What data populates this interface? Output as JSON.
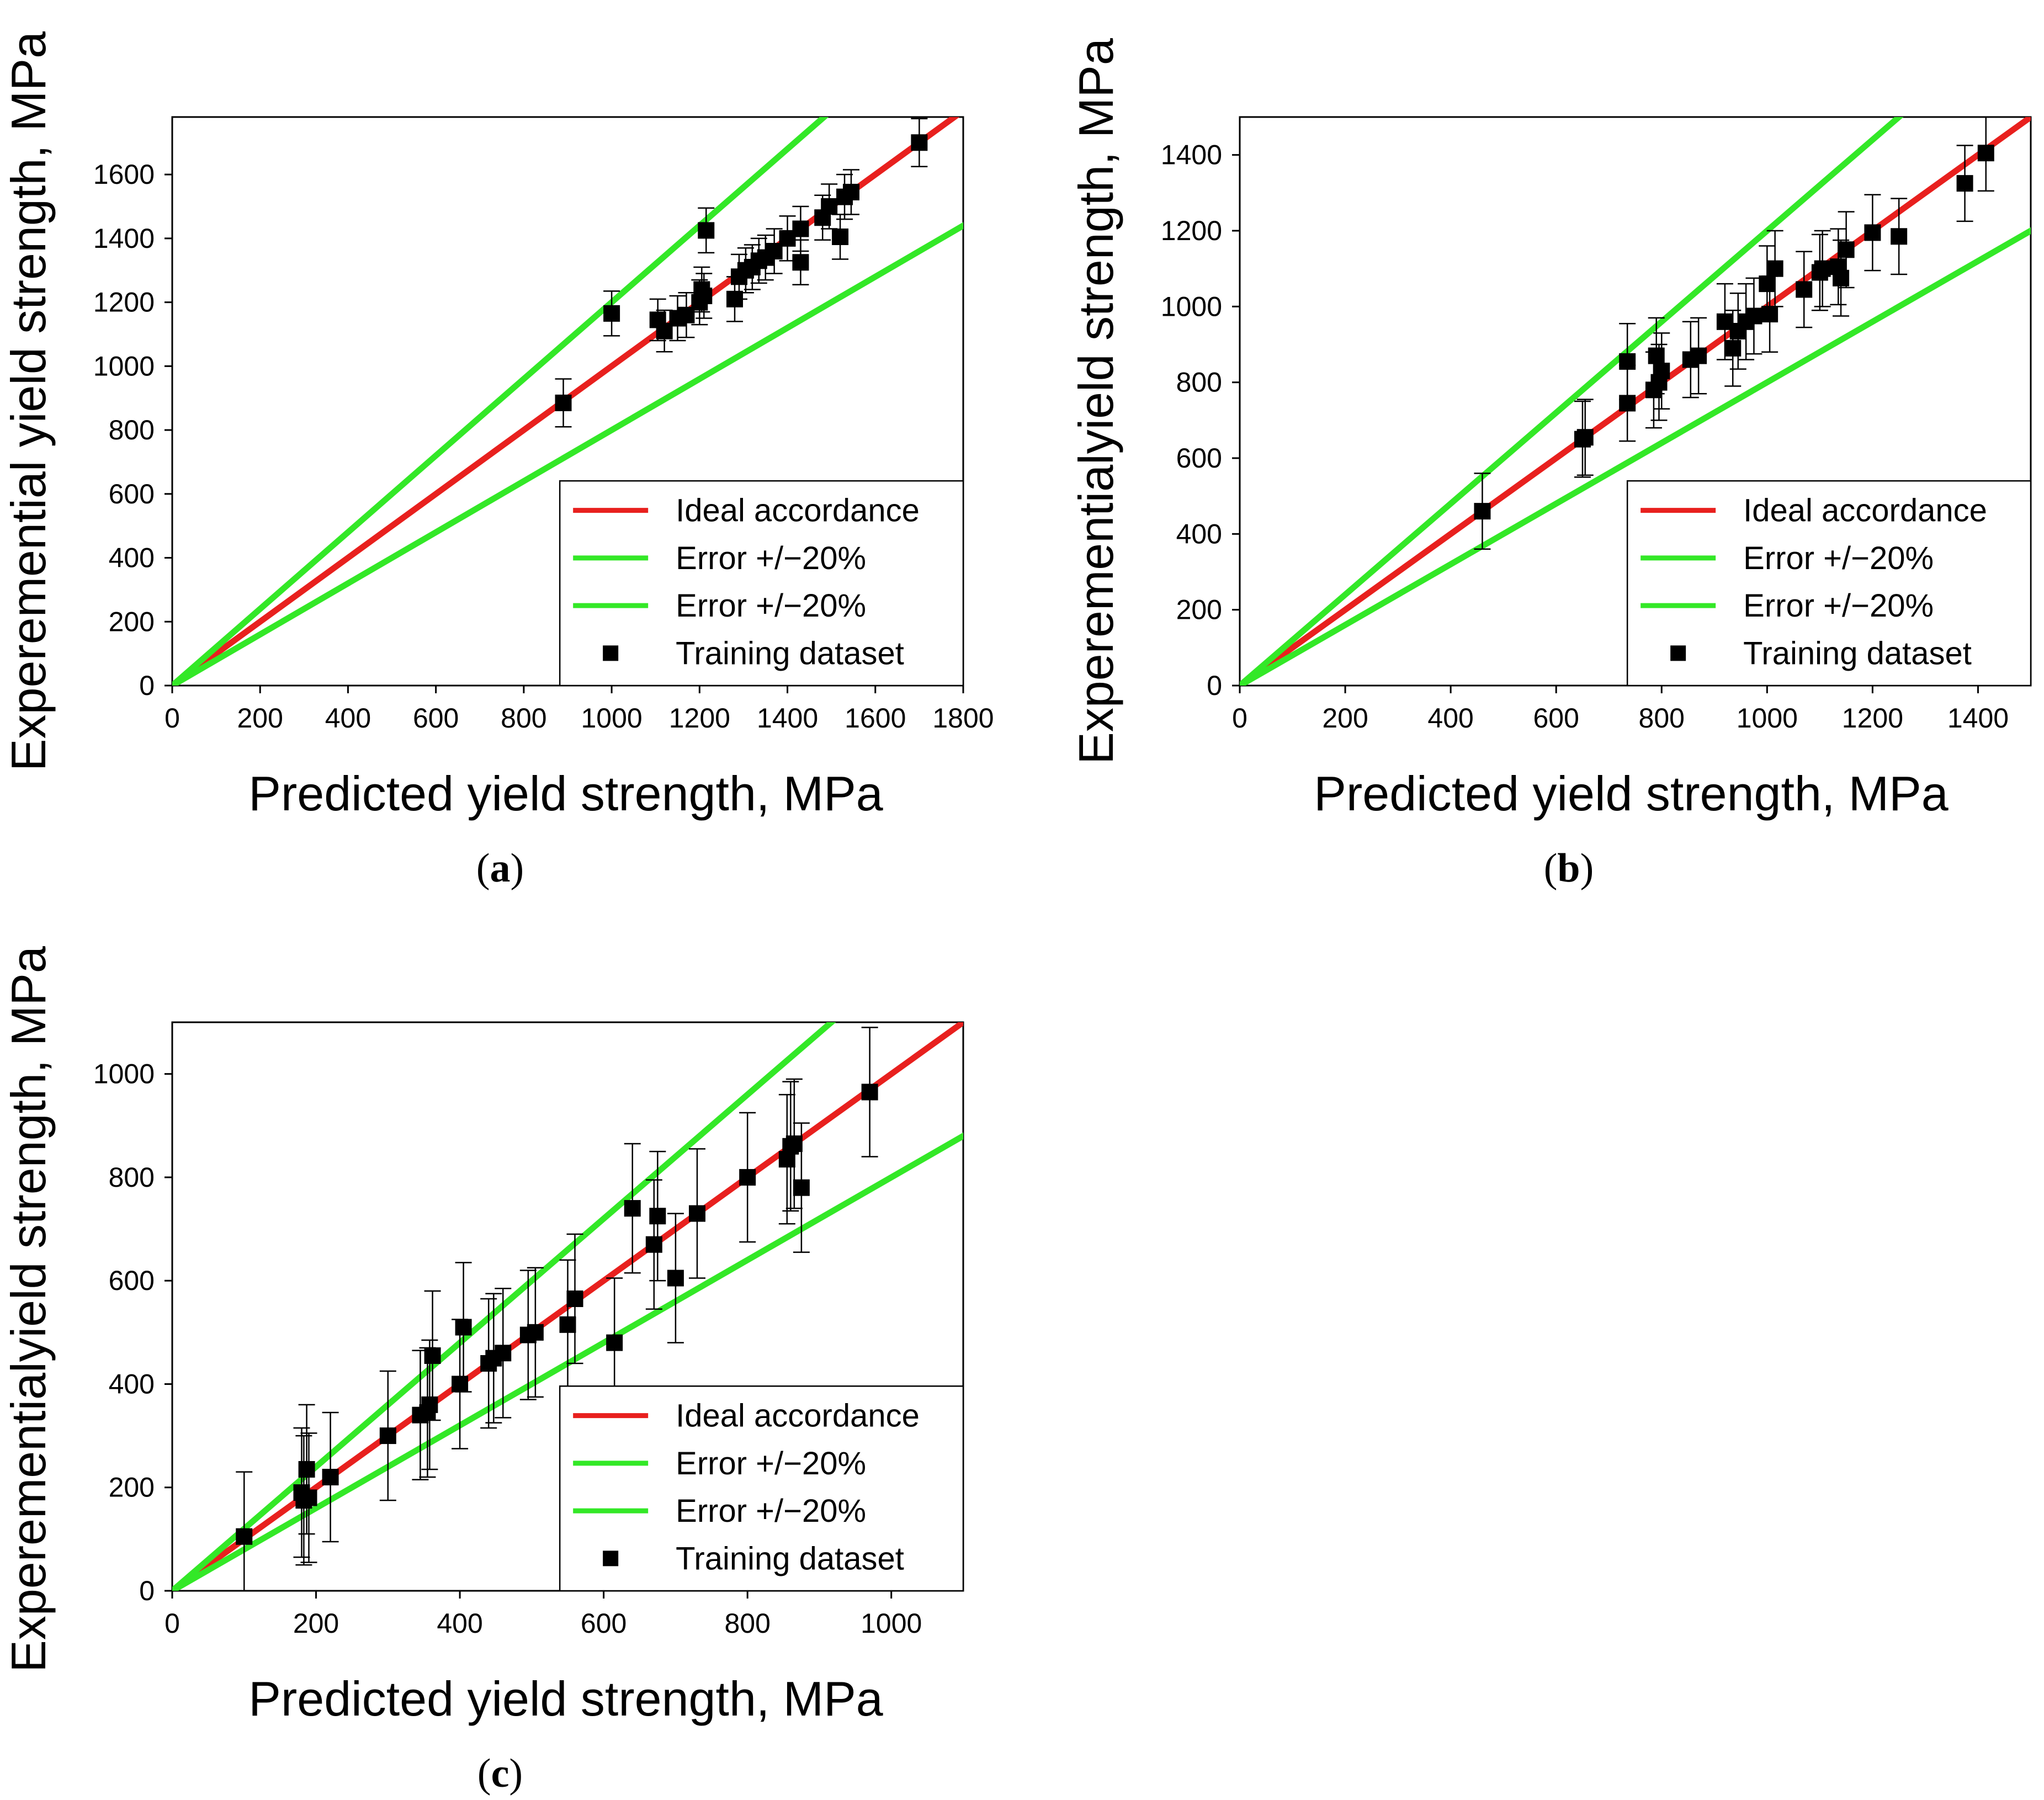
{
  "colors": {
    "ideal": "#e8201e",
    "error": "#33e827",
    "points": "#000000"
  },
  "charts": [
    {
      "caption": {
        "open": "(",
        "letter": "a",
        "close": ")"
      },
      "xlabel": "Predicted yield strength, MPa",
      "ylabel": "Exper​emential yield strength, MPa",
      "xlim": [
        0,
        1800
      ],
      "ylim": [
        0,
        1780
      ],
      "xticks": [
        0,
        200,
        400,
        600,
        800,
        1000,
        1200,
        1400,
        1600,
        1800
      ],
      "yticks": [
        0,
        200,
        400,
        600,
        800,
        1000,
        1200,
        1400,
        1600
      ],
      "legend": [
        "Ideal accordance",
        "Error +/−20%",
        "Error +/−20%",
        "Training dataset"
      ]
    },
    {
      "caption": {
        "open": "(",
        "letter": "b",
        "close": ")"
      },
      "xlabel": "Predicted yield strength, MPa",
      "ylabel": "Experementialyield strength, MPa",
      "xlim": [
        0,
        1500
      ],
      "ylim": [
        0,
        1500
      ],
      "xticks": [
        0,
        200,
        400,
        600,
        800,
        1000,
        1200,
        1400
      ],
      "yticks": [
        0,
        200,
        400,
        600,
        800,
        1000,
        1200,
        1400
      ],
      "legend": [
        "Ideal accordance",
        "Error +/−20%",
        "Error +/−20%",
        "Training dataset"
      ]
    },
    {
      "caption": {
        "open": "(",
        "letter": "c",
        "close": ")"
      },
      "xlabel": "Predicted yield strength, MPa",
      "ylabel": "Experementialyield strength, MPa",
      "xlim": [
        0,
        1100
      ],
      "ylim": [
        0,
        1100
      ],
      "xticks": [
        0,
        200,
        400,
        600,
        800,
        1000
      ],
      "yticks": [
        0,
        200,
        400,
        600,
        800,
        1000
      ],
      "legend": [
        "Ideal accordance",
        "Error +/−20%",
        "Error +/−20%",
        "Training dataset"
      ]
    }
  ],
  "chart_data": [
    {
      "type": "scatter",
      "series": [
        {
          "name": "Ideal accordance",
          "kind": "line",
          "slope": 1.0
        },
        {
          "name": "Error +/−20%",
          "kind": "line",
          "slope": 1.2
        },
        {
          "name": "Error +/−20%",
          "kind": "line",
          "slope": 0.8
        },
        {
          "name": "Training dataset",
          "kind": "points",
          "points": [
            {
              "x": 890,
              "y": 885,
              "err": 75
            },
            {
              "x": 1000,
              "y": 1165,
              "err": 70
            },
            {
              "x": 1105,
              "y": 1145,
              "err": 65
            },
            {
              "x": 1120,
              "y": 1110,
              "err": 65
            },
            {
              "x": 1150,
              "y": 1150,
              "err": 70
            },
            {
              "x": 1170,
              "y": 1160,
              "err": 70
            },
            {
              "x": 1200,
              "y": 1200,
              "err": 70
            },
            {
              "x": 1205,
              "y": 1240,
              "err": 70
            },
            {
              "x": 1210,
              "y": 1220,
              "err": 70
            },
            {
              "x": 1215,
              "y": 1425,
              "err": 70
            },
            {
              "x": 1280,
              "y": 1210,
              "err": 70
            },
            {
              "x": 1290,
              "y": 1280,
              "err": 70
            },
            {
              "x": 1305,
              "y": 1300,
              "err": 70
            },
            {
              "x": 1320,
              "y": 1310,
              "err": 70
            },
            {
              "x": 1335,
              "y": 1330,
              "err": 70
            },
            {
              "x": 1350,
              "y": 1340,
              "err": 70
            },
            {
              "x": 1370,
              "y": 1360,
              "err": 70
            },
            {
              "x": 1400,
              "y": 1400,
              "err": 70
            },
            {
              "x": 1430,
              "y": 1430,
              "err": 70
            },
            {
              "x": 1430,
              "y": 1325,
              "err": 70
            },
            {
              "x": 1480,
              "y": 1465,
              "err": 70
            },
            {
              "x": 1495,
              "y": 1500,
              "err": 70
            },
            {
              "x": 1520,
              "y": 1405,
              "err": 70
            },
            {
              "x": 1530,
              "y": 1530,
              "err": 70
            },
            {
              "x": 1545,
              "y": 1545,
              "err": 70
            },
            {
              "x": 1700,
              "y": 1700,
              "err": 75
            }
          ]
        }
      ]
    },
    {
      "type": "scatter",
      "series": [
        {
          "name": "Ideal accordance",
          "kind": "line",
          "slope": 1.0
        },
        {
          "name": "Error +/−20%",
          "kind": "line",
          "slope": 1.2
        },
        {
          "name": "Error +/−20%",
          "kind": "line",
          "slope": 0.8
        },
        {
          "name": "Training dataset",
          "kind": "points",
          "points": [
            {
              "x": 460,
              "y": 460,
              "err": 100
            },
            {
              "x": 650,
              "y": 650,
              "err": 100
            },
            {
              "x": 655,
              "y": 655,
              "err": 100
            },
            {
              "x": 735,
              "y": 745,
              "err": 100
            },
            {
              "x": 735,
              "y": 855,
              "err": 100
            },
            {
              "x": 785,
              "y": 780,
              "err": 100
            },
            {
              "x": 790,
              "y": 870,
              "err": 100
            },
            {
              "x": 795,
              "y": 800,
              "err": 100
            },
            {
              "x": 800,
              "y": 830,
              "err": 100
            },
            {
              "x": 855,
              "y": 860,
              "err": 100
            },
            {
              "x": 870,
              "y": 870,
              "err": 100
            },
            {
              "x": 920,
              "y": 960,
              "err": 100
            },
            {
              "x": 935,
              "y": 890,
              "err": 100
            },
            {
              "x": 945,
              "y": 935,
              "err": 100
            },
            {
              "x": 960,
              "y": 960,
              "err": 100
            },
            {
              "x": 975,
              "y": 975,
              "err": 100
            },
            {
              "x": 1000,
              "y": 1060,
              "err": 100
            },
            {
              "x": 1005,
              "y": 980,
              "err": 100
            },
            {
              "x": 1015,
              "y": 1100,
              "err": 100
            },
            {
              "x": 1070,
              "y": 1045,
              "err": 100
            },
            {
              "x": 1100,
              "y": 1090,
              "err": 100
            },
            {
              "x": 1105,
              "y": 1100,
              "err": 100
            },
            {
              "x": 1135,
              "y": 1105,
              "err": 100
            },
            {
              "x": 1140,
              "y": 1075,
              "err": 100
            },
            {
              "x": 1150,
              "y": 1150,
              "err": 100
            },
            {
              "x": 1200,
              "y": 1195,
              "err": 100
            },
            {
              "x": 1250,
              "y": 1185,
              "err": 100
            },
            {
              "x": 1375,
              "y": 1325,
              "err": 100
            },
            {
              "x": 1415,
              "y": 1405,
              "err": 100
            }
          ]
        }
      ]
    },
    {
      "type": "scatter",
      "series": [
        {
          "name": "Ideal accordance",
          "kind": "line",
          "slope": 1.0
        },
        {
          "name": "Error +/−20%",
          "kind": "line",
          "slope": 1.2
        },
        {
          "name": "Error +/−20%",
          "kind": "line",
          "slope": 0.8
        },
        {
          "name": "Training dataset",
          "kind": "points",
          "points": [
            {
              "x": 100,
              "y": 105,
              "err": 125
            },
            {
              "x": 180,
              "y": 190,
              "err": 125
            },
            {
              "x": 183,
              "y": 175,
              "err": 125
            },
            {
              "x": 187,
              "y": 235,
              "err": 125
            },
            {
              "x": 190,
              "y": 180,
              "err": 125
            },
            {
              "x": 220,
              "y": 220,
              "err": 125
            },
            {
              "x": 300,
              "y": 300,
              "err": 125
            },
            {
              "x": 345,
              "y": 340,
              "err": 125
            },
            {
              "x": 355,
              "y": 345,
              "err": 125
            },
            {
              "x": 358,
              "y": 360,
              "err": 125
            },
            {
              "x": 362,
              "y": 455,
              "err": 125
            },
            {
              "x": 400,
              "y": 400,
              "err": 125
            },
            {
              "x": 405,
              "y": 510,
              "err": 125
            },
            {
              "x": 440,
              "y": 440,
              "err": 125
            },
            {
              "x": 447,
              "y": 450,
              "err": 125
            },
            {
              "x": 460,
              "y": 460,
              "err": 125
            },
            {
              "x": 495,
              "y": 495,
              "err": 125
            },
            {
              "x": 505,
              "y": 500,
              "err": 125
            },
            {
              "x": 550,
              "y": 515,
              "err": 125
            },
            {
              "x": 560,
              "y": 565,
              "err": 125
            },
            {
              "x": 615,
              "y": 480,
              "err": 125
            },
            {
              "x": 640,
              "y": 740,
              "err": 125
            },
            {
              "x": 670,
              "y": 670,
              "err": 125
            },
            {
              "x": 675,
              "y": 725,
              "err": 125
            },
            {
              "x": 700,
              "y": 605,
              "err": 125
            },
            {
              "x": 730,
              "y": 730,
              "err": 125
            },
            {
              "x": 800,
              "y": 800,
              "err": 125
            },
            {
              "x": 855,
              "y": 835,
              "err": 125
            },
            {
              "x": 860,
              "y": 860,
              "err": 125
            },
            {
              "x": 865,
              "y": 865,
              "err": 125
            },
            {
              "x": 875,
              "y": 780,
              "err": 125
            },
            {
              "x": 970,
              "y": 965,
              "err": 125
            }
          ]
        }
      ]
    }
  ]
}
